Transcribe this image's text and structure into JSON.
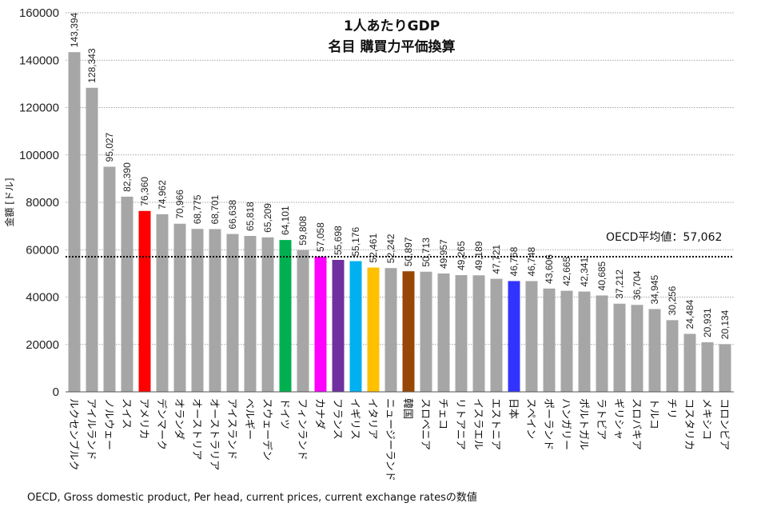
{
  "chart_data": {
    "type": "bar",
    "title": "1人あたりGDP",
    "subtitle": "名目 購買力平価換算",
    "ylabel": "金額 [ドル]",
    "xlabel": "",
    "ylim": [
      0,
      160000
    ],
    "yticks": [
      0,
      20000,
      40000,
      60000,
      80000,
      100000,
      120000,
      140000,
      160000
    ],
    "grid": "horizontal-dotted",
    "categories": [
      "ルクセンブルク",
      "アイルランド",
      "ノルウェー",
      "スイス",
      "アメリカ",
      "デンマーク",
      "オランダ",
      "オーストリア",
      "オーストラリア",
      "アイスランド",
      "ベルギー",
      "スウェーデン",
      "ドイツ",
      "フィンランド",
      "カナダ",
      "フランス",
      "イギリス",
      "イタリア",
      "ニュージーランド",
      "韓国",
      "スロベニア",
      "チェコ",
      "リトアニア",
      "イスラエル",
      "エストニア",
      "日本",
      "スペイン",
      "ポーランド",
      "ハンガリー",
      "ポルトガル",
      "ラトビア",
      "ギリシャ",
      "スロバキア",
      "トルコ",
      "チリ",
      "コスタリカ",
      "メキシコ",
      "コロンビア"
    ],
    "values": [
      143394,
      128343,
      95027,
      82390,
      76360,
      74962,
      70966,
      68775,
      68701,
      66638,
      65818,
      65209,
      64101,
      59808,
      57058,
      55698,
      55176,
      52461,
      52242,
      50897,
      50713,
      49957,
      49265,
      49189,
      47721,
      46768,
      46748,
      43606,
      42665,
      42341,
      40685,
      37212,
      36704,
      34945,
      30256,
      24484,
      20931,
      20134
    ],
    "value_labels": [
      "143,394",
      "128,343",
      "95,027",
      "82,390",
      "76,360",
      "74,962",
      "70,966",
      "68,775",
      "68,701",
      "66,638",
      "65,818",
      "65,209",
      "64,101",
      "59,808",
      "57,058",
      "55,698",
      "55,176",
      "52,461",
      "52,242",
      "50,897",
      "50,713",
      "49,957",
      "49,265",
      "49,189",
      "47,721",
      "46,768",
      "46,748",
      "43,606",
      "42,665",
      "42,341",
      "40,685",
      "37,212",
      "36,704",
      "34,945",
      "30,256",
      "24,484",
      "20,931",
      "20,134"
    ],
    "colors": [
      "#a6a6a6",
      "#a6a6a6",
      "#a6a6a6",
      "#a6a6a6",
      "#ff0000",
      "#a6a6a6",
      "#a6a6a6",
      "#a6a6a6",
      "#a6a6a6",
      "#a6a6a6",
      "#a6a6a6",
      "#a6a6a6",
      "#00b050",
      "#a6a6a6",
      "#ff00ff",
      "#7030a0",
      "#00b0f0",
      "#ffc000",
      "#a6a6a6",
      "#974706",
      "#a6a6a6",
      "#a6a6a6",
      "#a6a6a6",
      "#a6a6a6",
      "#a6a6a6",
      "#3333ff",
      "#a6a6a6",
      "#a6a6a6",
      "#a6a6a6",
      "#a6a6a6",
      "#a6a6a6",
      "#a6a6a6",
      "#a6a6a6",
      "#a6a6a6",
      "#a6a6a6",
      "#a6a6a6",
      "#a6a6a6",
      "#a6a6a6"
    ],
    "reference_line": {
      "value": 57062,
      "label": "OECD平均値：57,062",
      "style": "dotted"
    },
    "source": "OECD, Gross domestic product, Per head, current prices, current exchange ratesの数値"
  }
}
